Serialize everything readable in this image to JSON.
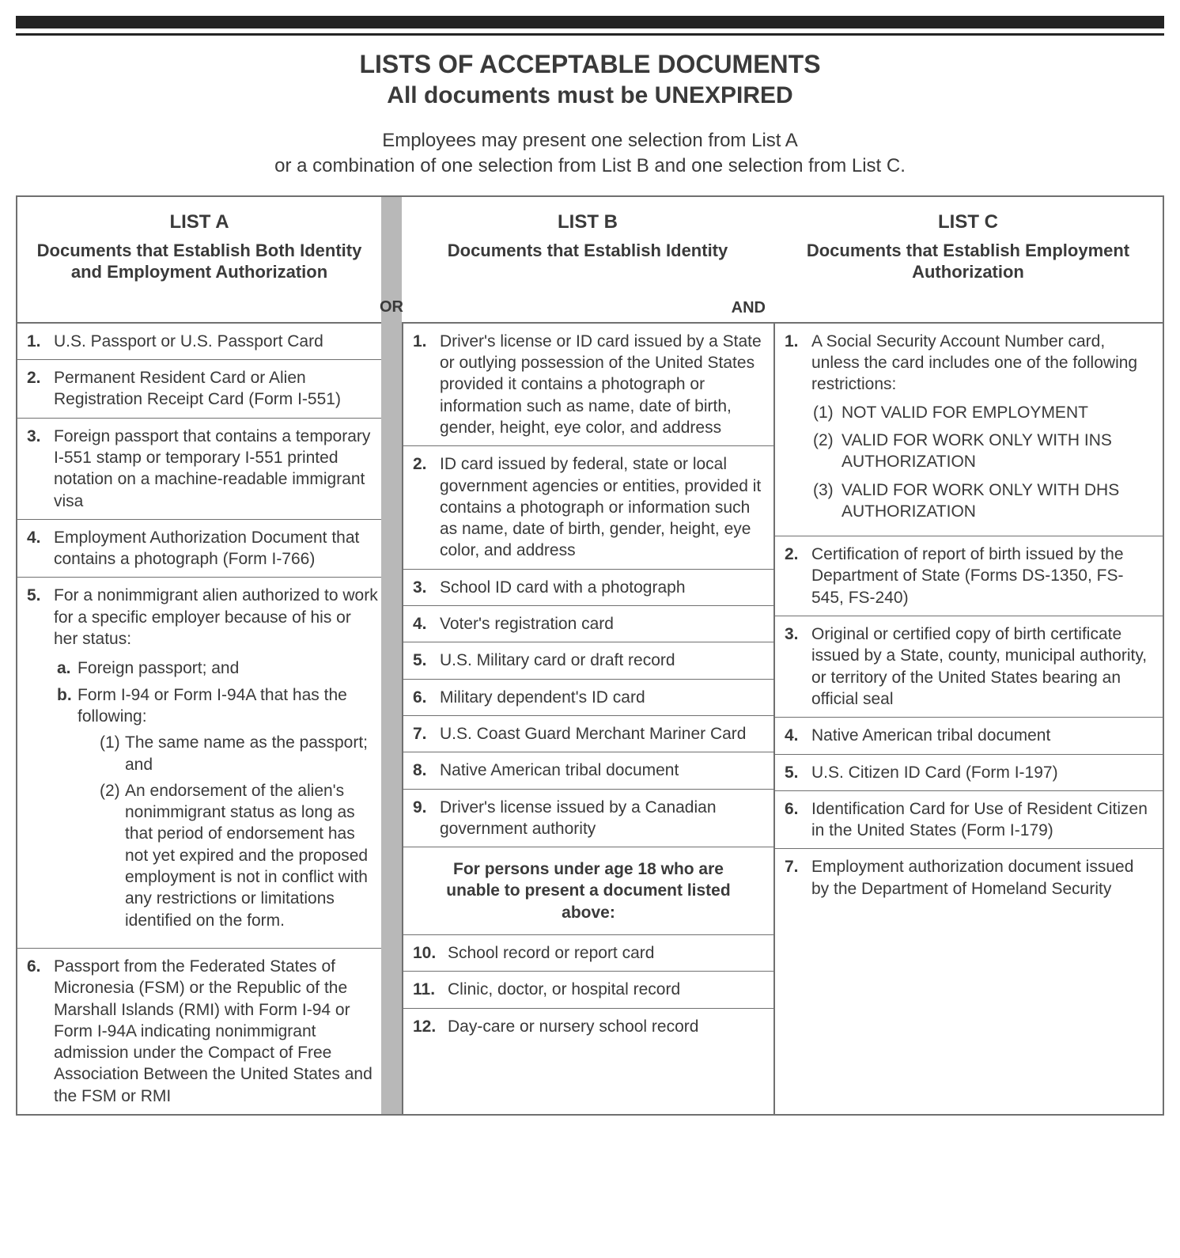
{
  "colors": {
    "rule": "#242424",
    "border": "#707070",
    "separator": "#b8b8b8",
    "text": "#3a3a3a",
    "background": "#ffffff"
  },
  "typography": {
    "family": "Arial",
    "title_size_pt": 24,
    "body_size_pt": 16
  },
  "header": {
    "title1": "LISTS OF ACCEPTABLE DOCUMENTS",
    "title2": "All documents must be UNEXPIRED",
    "intro_line1": "Employees may present one selection from List A",
    "intro_line2": "or a combination of one selection from List B and one selection from List C."
  },
  "connectors": {
    "or": "OR",
    "and": "AND"
  },
  "listA": {
    "name": "LIST A",
    "desc": "Documents that Establish Both Identity and Employment Authorization",
    "items": [
      {
        "n": "1.",
        "t": "U.S. Passport or U.S. Passport Card"
      },
      {
        "n": "2.",
        "t": "Permanent Resident Card or Alien Registration Receipt Card (Form I-551)"
      },
      {
        "n": "3.",
        "t": "Foreign passport that contains a temporary I-551 stamp or temporary I-551 printed notation on a machine-readable immigrant visa"
      },
      {
        "n": "4.",
        "t": "Employment Authorization Document that contains a photograph (Form I-766)"
      },
      {
        "n": "5.",
        "t": "For a nonimmigrant alien authorized to work for a specific employer because of his or her status:",
        "sub_a": [
          {
            "l": "a.",
            "t": "Foreign passport; and"
          },
          {
            "l": "b.",
            "t": "Form I-94 or Form I-94A that has the following:",
            "sub_n": [
              {
                "l": "(1)",
                "t": "The same name as the passport; and"
              },
              {
                "l": "(2)",
                "t": "An endorsement of the alien's nonimmigrant status as long as that period of endorsement has not yet expired and the proposed employment is not in conflict with any restrictions or limitations identified on the form."
              }
            ]
          }
        ]
      },
      {
        "n": "6.",
        "t": "Passport from the Federated States of Micronesia (FSM) or the Republic of the Marshall Islands (RMI) with Form I-94 or Form I-94A indicating nonimmigrant admission under the Compact of Free Association Between the United States and the FSM or RMI"
      }
    ]
  },
  "listB": {
    "name": "LIST B",
    "desc": "Documents that Establish Identity",
    "items": [
      {
        "n": "1.",
        "t": "Driver's license or ID card issued by a State or outlying possession of the United States provided it contains a photograph or information such as name, date of birth, gender, height, eye color, and address"
      },
      {
        "n": "2.",
        "t": "ID card issued by federal, state or local government agencies or entities, provided it contains a photograph or information such as name, date of birth, gender, height, eye color, and address"
      },
      {
        "n": "3.",
        "t": "School ID card with a photograph"
      },
      {
        "n": "4.",
        "t": "Voter's registration card"
      },
      {
        "n": "5.",
        "t": "U.S. Military card or draft record"
      },
      {
        "n": "6.",
        "t": "Military dependent's ID card"
      },
      {
        "n": "7.",
        "t": "U.S. Coast Guard Merchant Mariner Card"
      },
      {
        "n": "8.",
        "t": "Native American tribal document"
      },
      {
        "n": "9.",
        "t": "Driver's license issued by a Canadian government authority"
      }
    ],
    "subheader": "For persons under age 18 who are unable to present a document listed above:",
    "items2": [
      {
        "n": "10.",
        "t": "School record or report card"
      },
      {
        "n": "11.",
        "t": "Clinic, doctor, or hospital record"
      },
      {
        "n": "12.",
        "t": "Day-care or nursery school record"
      }
    ]
  },
  "listC": {
    "name": "LIST C",
    "desc": "Documents that Establish Employment Authorization",
    "items": [
      {
        "n": "1.",
        "t": "A Social Security Account Number card, unless the card includes one of the following restrictions:",
        "restrictions": [
          {
            "l": "(1)",
            "t": "NOT VALID FOR EMPLOYMENT"
          },
          {
            "l": "(2)",
            "t": "VALID FOR WORK ONLY WITH INS AUTHORIZATION"
          },
          {
            "l": "(3)",
            "t": "VALID FOR WORK ONLY WITH DHS AUTHORIZATION"
          }
        ]
      },
      {
        "n": "2.",
        "t": "Certification of report of birth issued by the Department of State (Forms DS-1350, FS-545, FS-240)"
      },
      {
        "n": "3.",
        "t": "Original or certified copy of birth certificate issued by a State, county, municipal authority, or territory of the United States bearing an official seal"
      },
      {
        "n": "4.",
        "t": "Native American tribal document"
      },
      {
        "n": "5.",
        "t": "U.S. Citizen ID Card (Form I-197)"
      },
      {
        "n": "6.",
        "t": "Identification Card for Use of Resident Citizen in the United States (Form I-179)"
      },
      {
        "n": "7.",
        "t": "Employment authorization document issued by the Department of Homeland Security"
      }
    ]
  }
}
